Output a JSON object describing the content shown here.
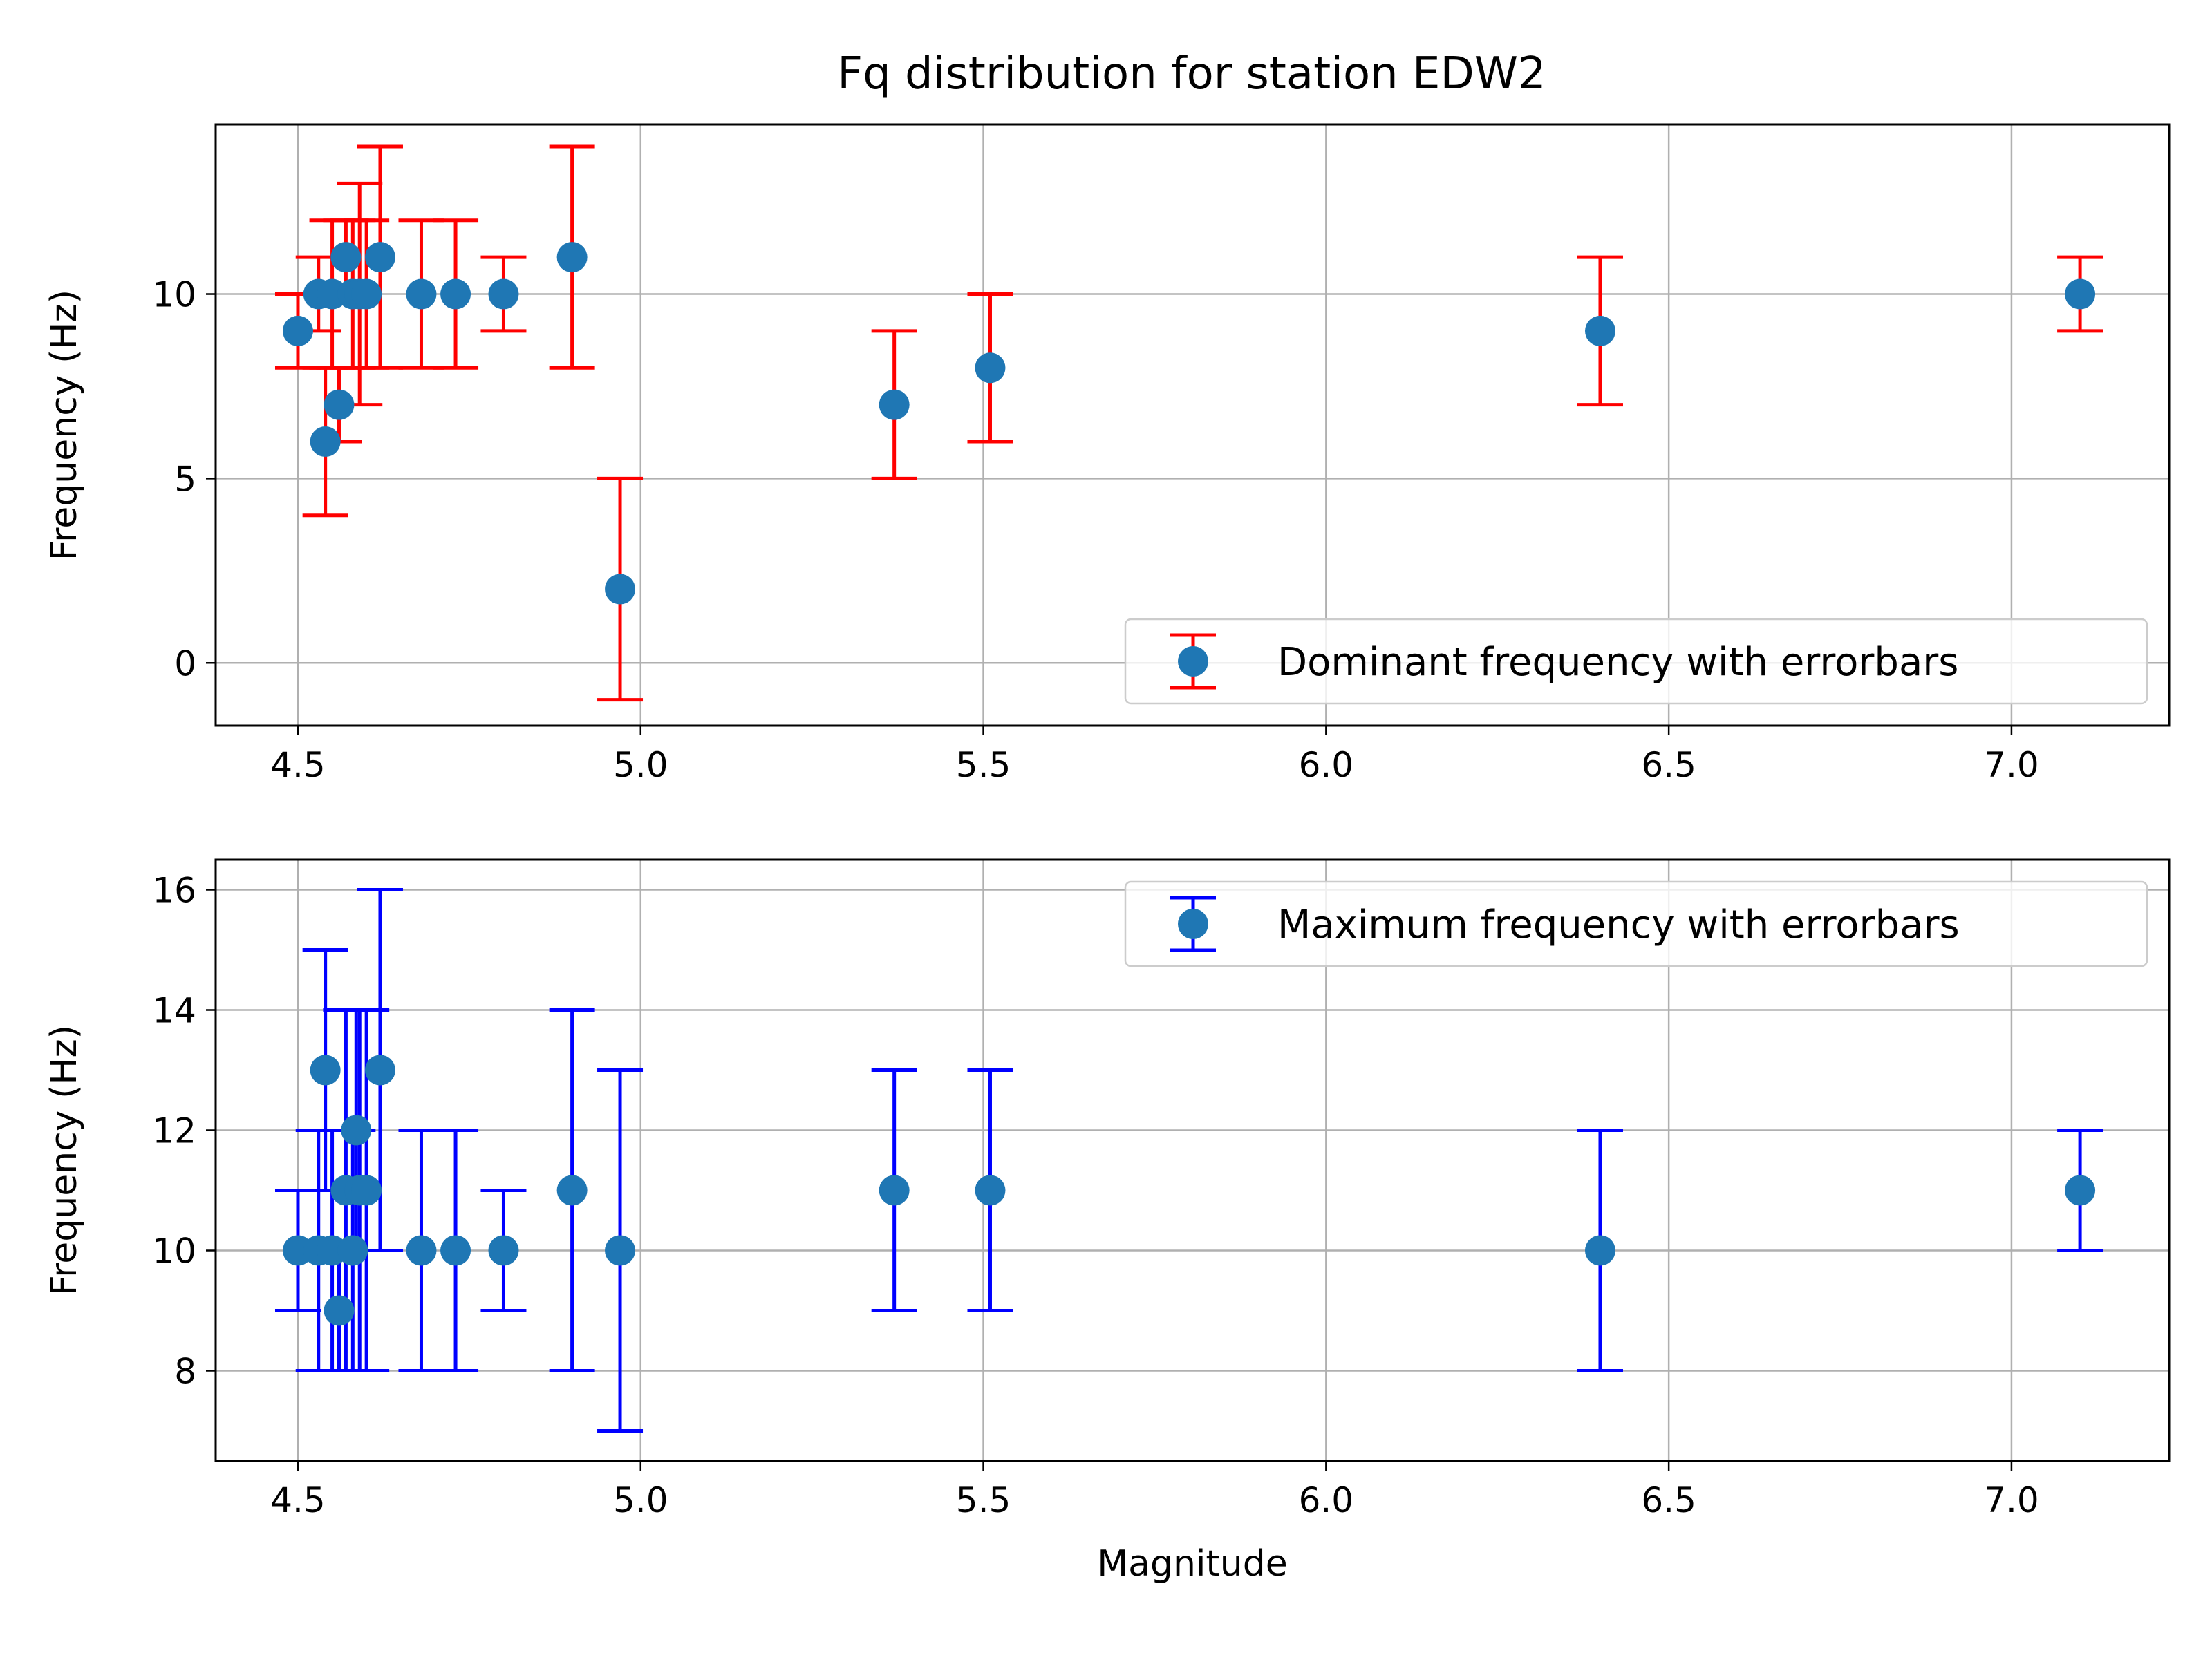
{
  "figure": {
    "title": "Fq distribution for station EDW2"
  },
  "chart_data": [
    {
      "type": "scatter",
      "errorbars": true,
      "title": "",
      "xlabel": "",
      "ylabel": "Frequency (Hz)",
      "xlim": [
        4.38,
        7.23
      ],
      "ylim": [
        -1.7,
        14.6
      ],
      "xticks": [
        "4.5",
        "5.0",
        "5.5",
        "6.0",
        "6.5",
        "7.0"
      ],
      "yticks": [
        "0",
        "5",
        "10"
      ],
      "grid": true,
      "legend_position": "lower-right",
      "series": [
        {
          "name": "Dominant frequency with errorbars",
          "marker_color": "#1f77b4",
          "errorbar_color": "#ff0000",
          "x": [
            4.5,
            4.53,
            4.54,
            4.55,
            4.56,
            4.57,
            4.58,
            4.59,
            4.6,
            4.62,
            4.68,
            4.73,
            4.8,
            4.9,
            4.97,
            5.37,
            5.51,
            6.4,
            7.1
          ],
          "y": [
            9,
            10,
            6,
            10,
            7,
            11,
            10,
            10,
            10,
            11,
            10,
            10,
            10,
            11,
            2,
            7,
            8,
            9,
            10
          ],
          "yerr": [
            1,
            1,
            2,
            2,
            1,
            1,
            2,
            3,
            2,
            3,
            2,
            2,
            1,
            3,
            3,
            2,
            2,
            2,
            1
          ]
        }
      ]
    },
    {
      "type": "scatter",
      "errorbars": true,
      "title": "",
      "xlabel": "Magnitude",
      "ylabel": "Frequency (Hz)",
      "xlim": [
        4.38,
        7.23
      ],
      "ylim": [
        6.5,
        16.5
      ],
      "xticks": [
        "4.5",
        "5.0",
        "5.5",
        "6.0",
        "6.5",
        "7.0"
      ],
      "yticks": [
        "8",
        "10",
        "12",
        "14",
        "16"
      ],
      "grid": true,
      "legend_position": "upper-right",
      "series": [
        {
          "name": "Maximum frequency with errorbars",
          "marker_color": "#1f77b4",
          "errorbar_color": "#0000ff",
          "x": [
            4.5,
            4.53,
            4.54,
            4.55,
            4.56,
            4.57,
            4.58,
            4.585,
            4.59,
            4.6,
            4.62,
            4.68,
            4.73,
            4.8,
            4.9,
            4.97,
            5.37,
            5.51,
            6.4,
            7.1
          ],
          "y": [
            10,
            10,
            13,
            10,
            9,
            11,
            10,
            12,
            11,
            11,
            13,
            10,
            10,
            10,
            11,
            10,
            11,
            11,
            10,
            11
          ],
          "yerr": [
            1,
            2,
            2,
            2,
            1,
            3,
            2,
            2,
            3,
            3,
            3,
            2,
            2,
            1,
            3,
            3,
            2,
            2,
            2,
            1
          ]
        }
      ]
    }
  ]
}
